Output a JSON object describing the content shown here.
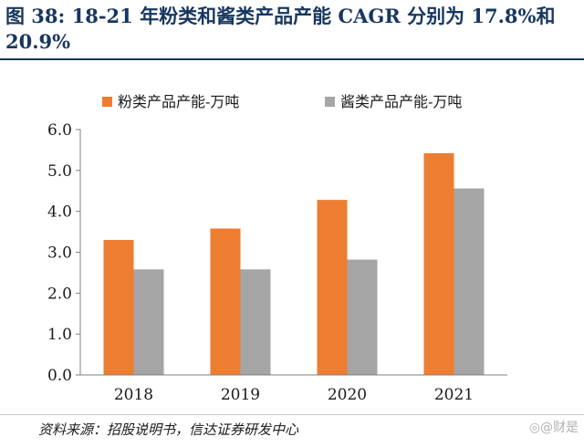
{
  "figure": {
    "title": "图 38:  18-21 年粉类和酱类产品产能 CAGR 分别为 17.8%和 20.9%",
    "source": "资料来源：招股说明书，信达证券研发中心",
    "watermark": "◎@财是"
  },
  "chart_data": {
    "type": "bar",
    "categories": [
      "2018",
      "2019",
      "2020",
      "2021"
    ],
    "series": [
      {
        "name": "粉类产品产能-万吨",
        "color": "#ed7d31",
        "values": [
          3.3,
          3.58,
          4.28,
          5.42
        ]
      },
      {
        "name": "酱类产品产能-万吨",
        "color": "#a5a5a5",
        "values": [
          2.58,
          2.58,
          2.82,
          4.56
        ]
      }
    ],
    "ylim": [
      0,
      6
    ],
    "yticks": [
      0.0,
      1.0,
      2.0,
      3.0,
      4.0,
      5.0,
      6.0
    ],
    "ytick_labels": [
      "0.0",
      "1.0",
      "2.0",
      "3.0",
      "4.0",
      "5.0",
      "6.0"
    ],
    "grid": false,
    "legend": "top"
  }
}
